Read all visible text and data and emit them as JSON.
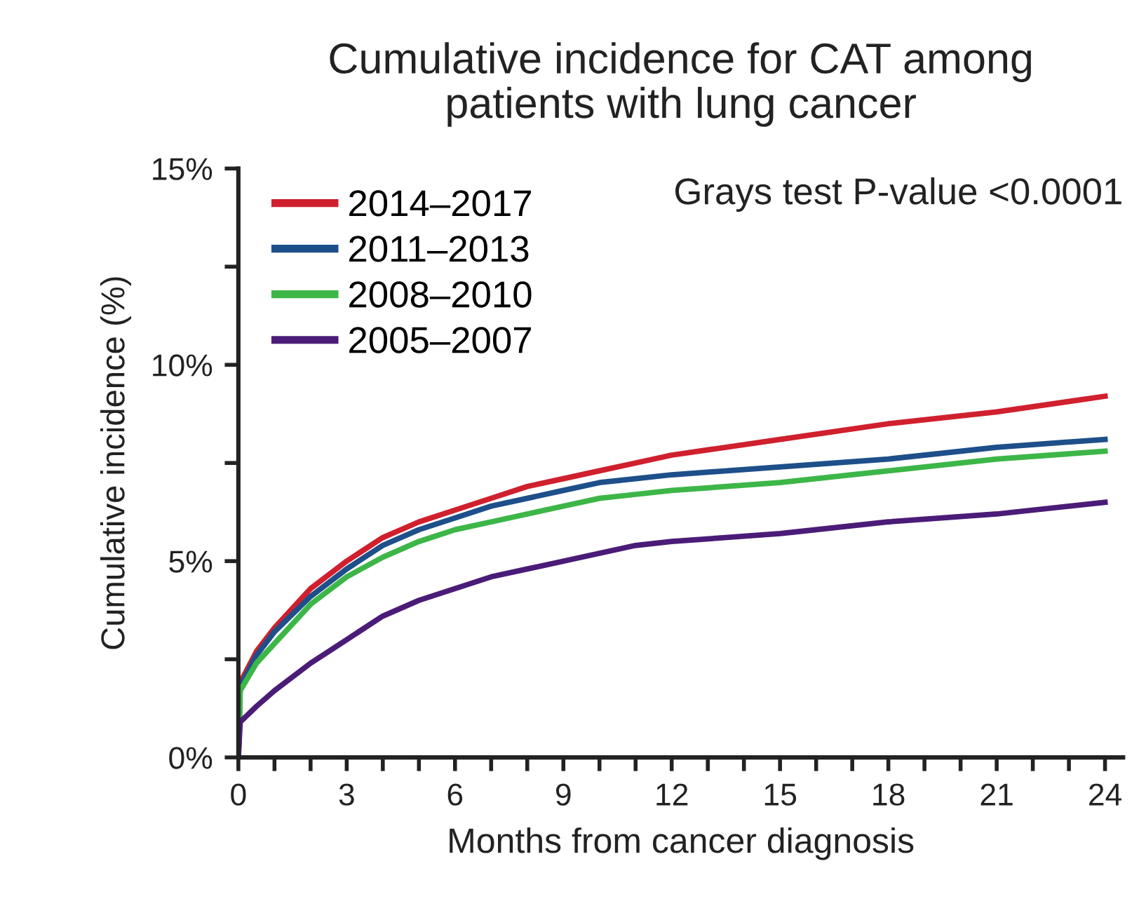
{
  "chart_data": {
    "type": "line",
    "title": "Cumulative incidence for CAT among\npatients with lung cancer",
    "xlabel": "Months from cancer diagnosis",
    "ylabel": "Cumulative incidence (%)",
    "annotations": [
      "Grays test P-value <0.0001"
    ],
    "legend": "top left",
    "xlim": [
      0,
      24.5
    ],
    "ylim": [
      0,
      15
    ],
    "xticks": [
      0,
      {
        "value": 1,
        "label": null
      },
      {
        "value": 2,
        "label": null
      },
      3,
      {
        "value": 4,
        "label": null
      },
      {
        "value": 5,
        "label": null
      },
      6,
      {
        "value": 7,
        "label": null
      },
      {
        "value": 8,
        "label": null
      },
      9,
      {
        "value": 10,
        "label": null
      },
      {
        "value": 11,
        "label": null
      },
      12,
      {
        "value": 13,
        "label": null
      },
      {
        "value": 14,
        "label": null
      },
      15,
      {
        "value": 16,
        "label": null
      },
      {
        "value": 17,
        "label": null
      },
      18,
      {
        "value": 19,
        "label": null
      },
      {
        "value": 20,
        "label": null
      },
      21,
      {
        "value": 22,
        "label": null
      },
      {
        "value": 23,
        "label": null
      },
      24
    ],
    "yticks": [
      {
        "value": 0,
        "label": "0%"
      },
      {
        "value": 2.5,
        "label": null
      },
      {
        "value": 5,
        "label": "5%"
      },
      {
        "value": 7.5,
        "label": null
      },
      {
        "value": 10,
        "label": "10%"
      },
      {
        "value": 12.5,
        "label": null
      },
      {
        "value": 15,
        "label": "15%"
      }
    ],
    "series": [
      {
        "name": "2014–2017",
        "color": "#d0202e",
        "x": [
          0,
          0.05,
          0.5,
          1,
          2,
          3,
          4,
          5,
          6,
          7,
          8,
          9,
          10,
          11,
          12,
          15,
          18,
          21,
          24
        ],
        "values": [
          0,
          1.9,
          2.7,
          3.3,
          4.3,
          5.0,
          5.6,
          6.0,
          6.3,
          6.6,
          6.9,
          7.1,
          7.3,
          7.5,
          7.7,
          8.1,
          8.5,
          8.8,
          9.2
        ]
      },
      {
        "name": "2011–2013",
        "color": "#1d4f8a",
        "x": [
          0,
          0.05,
          0.5,
          1,
          2,
          3,
          4,
          5,
          6,
          7,
          8,
          9,
          10,
          11,
          12,
          15,
          18,
          21,
          24
        ],
        "values": [
          0,
          1.8,
          2.6,
          3.2,
          4.1,
          4.8,
          5.4,
          5.8,
          6.1,
          6.4,
          6.6,
          6.8,
          7.0,
          7.1,
          7.2,
          7.4,
          7.6,
          7.9,
          8.1
        ]
      },
      {
        "name": "2008–2010",
        "color": "#3db648",
        "x": [
          0,
          0.05,
          0.5,
          1,
          2,
          3,
          4,
          5,
          6,
          7,
          8,
          9,
          10,
          11,
          12,
          15,
          18,
          21,
          24
        ],
        "values": [
          0,
          1.7,
          2.4,
          2.9,
          3.9,
          4.6,
          5.1,
          5.5,
          5.8,
          6.0,
          6.2,
          6.4,
          6.6,
          6.7,
          6.8,
          7.0,
          7.3,
          7.6,
          7.8
        ]
      },
      {
        "name": "2005–2007",
        "color": "#4a1c78",
        "x": [
          0,
          0.05,
          0.5,
          1,
          2,
          3,
          4,
          5,
          6,
          7,
          8,
          9,
          10,
          11,
          12,
          15,
          18,
          21,
          24
        ],
        "values": [
          0,
          0.9,
          1.3,
          1.7,
          2.4,
          3.0,
          3.6,
          4.0,
          4.3,
          4.6,
          4.8,
          5.0,
          5.2,
          5.4,
          5.5,
          5.7,
          6.0,
          6.2,
          6.5
        ]
      }
    ]
  }
}
